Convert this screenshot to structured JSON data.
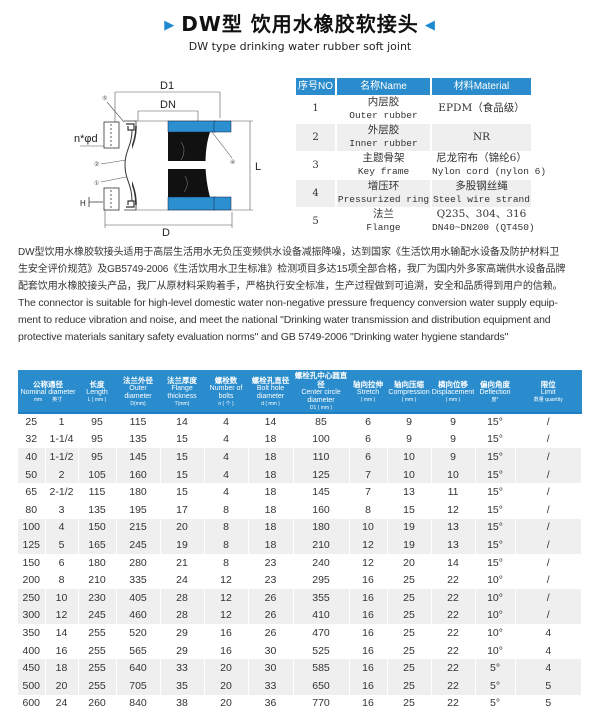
{
  "header": {
    "title": "DW型 饮用水橡胶软接头",
    "subtitle": "DW type drinking water rubber soft joint",
    "accent": "#2a8ccc"
  },
  "diagram": {
    "labels": {
      "d1": "D1",
      "dn": "DN",
      "d": "D",
      "l": "L",
      "bolt": "n*φd",
      "h": "H"
    },
    "callouts": [
      "①",
      "②",
      "③",
      "④",
      "⑤"
    ]
  },
  "materials": {
    "headers": [
      "序号NO",
      "名称Name",
      "材料Material"
    ],
    "rows": [
      {
        "no": "1",
        "name_zh": "内层胶",
        "name_en": "Outer rubber",
        "mat_zh": "EPDM（食品级）",
        "mat_en": ""
      },
      {
        "no": "2",
        "name_zh": "外层胶",
        "name_en": "Inner rubber",
        "mat_zh": "NR",
        "mat_en": ""
      },
      {
        "no": "3",
        "name_zh": "主题骨架",
        "name_en": "Key frame",
        "mat_zh": "尼龙帘布（锦纶6）",
        "mat_en": "Nylon cord (nylon 6)"
      },
      {
        "no": "4",
        "name_zh": "增压环",
        "name_en": "Pressurized ring",
        "mat_zh": "多股钢丝绳",
        "mat_en": "Steel wire strand"
      },
      {
        "no": "5",
        "name_zh": "法兰",
        "name_en": "Flange",
        "mat_zh": "Q235、304、316",
        "mat_en": "DN40~DN200 (QT450)"
      }
    ]
  },
  "description": {
    "lines": [
      "DW型饮用水橡胶软接头适用于高层生活用水无负压变频供水设备减振降噪，达到国家《生活饮用水输配水设备及防护材料卫",
      "生安全评价规范》及GB5749-2006《生活饮用水卫生标准》检测项目多达15项全部合格，我厂为国内外多家高端供水设备品牌",
      "配套饮用水橡胶接头产品，我厂从原材料采购着手，严格执行安全标准，生产过程做到可追溯，安全和品质得到用户的信赖。",
      "The connector is suitable for high-level domestic water non-negative pressure frequency conversion water supply equip-",
      "ment to reduce vibration and noise, and meet the national \"Drinking water transmission and distribution equipment and",
      "protective materials sanitary safety evaluation norms\" and GB 5749-2006 \"Drinking water hygiene standards\""
    ]
  },
  "spec": {
    "headers": [
      {
        "zh": "公称通径",
        "en": "Nominal diameter",
        "unit": "mm　　英寸"
      },
      {
        "zh": "长度",
        "en": "Length",
        "unit": "L ( mm )"
      },
      {
        "zh": "法兰外径",
        "en": "Outer diameter",
        "unit": "D(mm)"
      },
      {
        "zh": "法兰厚度",
        "en": "Flange thickness",
        "unit": "T(mm)"
      },
      {
        "zh": "螺栓数",
        "en": "Number of bolts",
        "unit": "n ( 个 )"
      },
      {
        "zh": "螺栓孔直径",
        "en": "Bolt hole diameter",
        "unit": "d ( mm )"
      },
      {
        "zh": "螺栓孔中心圆直径",
        "en": "Center circle diameter",
        "unit": "D1 ( mm )"
      },
      {
        "zh": "轴向拉伸",
        "en": "Stretch",
        "unit": "( mm )"
      },
      {
        "zh": "轴向压缩",
        "en": "Compression",
        "unit": "( mm )"
      },
      {
        "zh": "横向位移",
        "en": "Displacement",
        "unit": "( mm )"
      },
      {
        "zh": "偏向角度",
        "en": "Deflection",
        "unit": "度°"
      },
      {
        "zh": "限位",
        "en": "Limit",
        "unit": "数量 quantity"
      }
    ],
    "rows": [
      [
        "25",
        "1",
        "95",
        "115",
        "14",
        "4",
        "14",
        "85",
        "6",
        "9",
        "9",
        "15°",
        "/"
      ],
      [
        "32",
        "1-1/4",
        "95",
        "135",
        "15",
        "4",
        "18",
        "100",
        "6",
        "9",
        "9",
        "15°",
        "/"
      ],
      [
        "40",
        "1-1/2",
        "95",
        "145",
        "15",
        "4",
        "18",
        "110",
        "6",
        "10",
        "9",
        "15°",
        "/"
      ],
      [
        "50",
        "2",
        "105",
        "160",
        "15",
        "4",
        "18",
        "125",
        "7",
        "10",
        "10",
        "15°",
        "/"
      ],
      [
        "65",
        "2-1/2",
        "115",
        "180",
        "15",
        "4",
        "18",
        "145",
        "7",
        "13",
        "11",
        "15°",
        "/"
      ],
      [
        "80",
        "3",
        "135",
        "195",
        "17",
        "8",
        "18",
        "160",
        "8",
        "15",
        "12",
        "15°",
        "/"
      ],
      [
        "100",
        "4",
        "150",
        "215",
        "20",
        "8",
        "18",
        "180",
        "10",
        "19",
        "13",
        "15°",
        "/"
      ],
      [
        "125",
        "5",
        "165",
        "245",
        "19",
        "8",
        "18",
        "210",
        "12",
        "19",
        "13",
        "15°",
        "/"
      ],
      [
        "150",
        "6",
        "180",
        "280",
        "21",
        "8",
        "23",
        "240",
        "12",
        "20",
        "14",
        "15°",
        "/"
      ],
      [
        "200",
        "8",
        "210",
        "335",
        "24",
        "12",
        "23",
        "295",
        "16",
        "25",
        "22",
        "10°",
        "/"
      ],
      [
        "250",
        "10",
        "230",
        "405",
        "28",
        "12",
        "26",
        "355",
        "16",
        "25",
        "22",
        "10°",
        "/"
      ],
      [
        "300",
        "12",
        "245",
        "460",
        "28",
        "12",
        "26",
        "410",
        "16",
        "25",
        "22",
        "10°",
        "/"
      ],
      [
        "350",
        "14",
        "255",
        "520",
        "29",
        "16",
        "26",
        "470",
        "16",
        "25",
        "22",
        "10°",
        "4"
      ],
      [
        "400",
        "16",
        "255",
        "565",
        "29",
        "16",
        "30",
        "525",
        "16",
        "25",
        "22",
        "10°",
        "4"
      ],
      [
        "450",
        "18",
        "255",
        "640",
        "33",
        "20",
        "30",
        "585",
        "16",
        "25",
        "22",
        "5°",
        "4"
      ],
      [
        "500",
        "20",
        "255",
        "705",
        "35",
        "20",
        "33",
        "650",
        "16",
        "25",
        "22",
        "5°",
        "5"
      ],
      [
        "600",
        "24",
        "260",
        "840",
        "38",
        "20",
        "36",
        "770",
        "16",
        "25",
        "22",
        "5°",
        "5"
      ]
    ]
  }
}
